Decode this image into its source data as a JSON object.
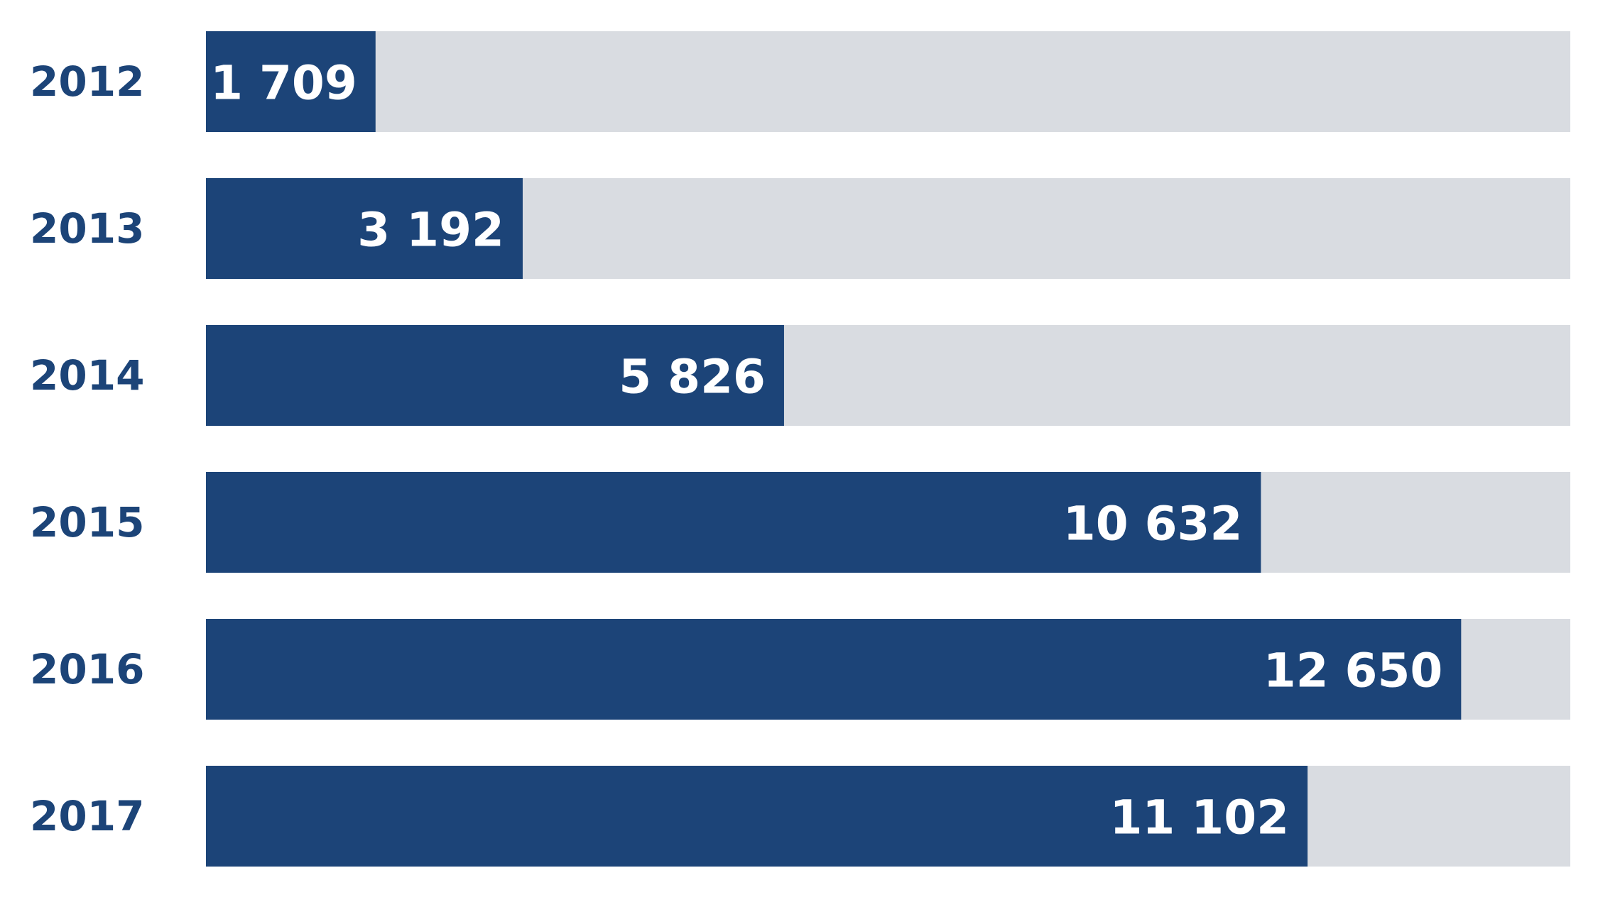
{
  "chart_data": {
    "type": "bar",
    "orientation": "horizontal",
    "categories": [
      "2012",
      "2013",
      "2014",
      "2015",
      "2016",
      "2017"
    ],
    "values": [
      1709,
      3192,
      5826,
      10632,
      12650,
      11102
    ],
    "value_labels": [
      "1 709",
      "3 192",
      "5 826",
      "10 632",
      "12 650",
      "11 102"
    ],
    "xlim": [
      0,
      13750
    ],
    "grid": false,
    "legend": "none",
    "colors": {
      "bar": "#1c4478",
      "track": "#d9dce1",
      "year_text": "#1c4478",
      "value_text": "#ffffff"
    }
  }
}
